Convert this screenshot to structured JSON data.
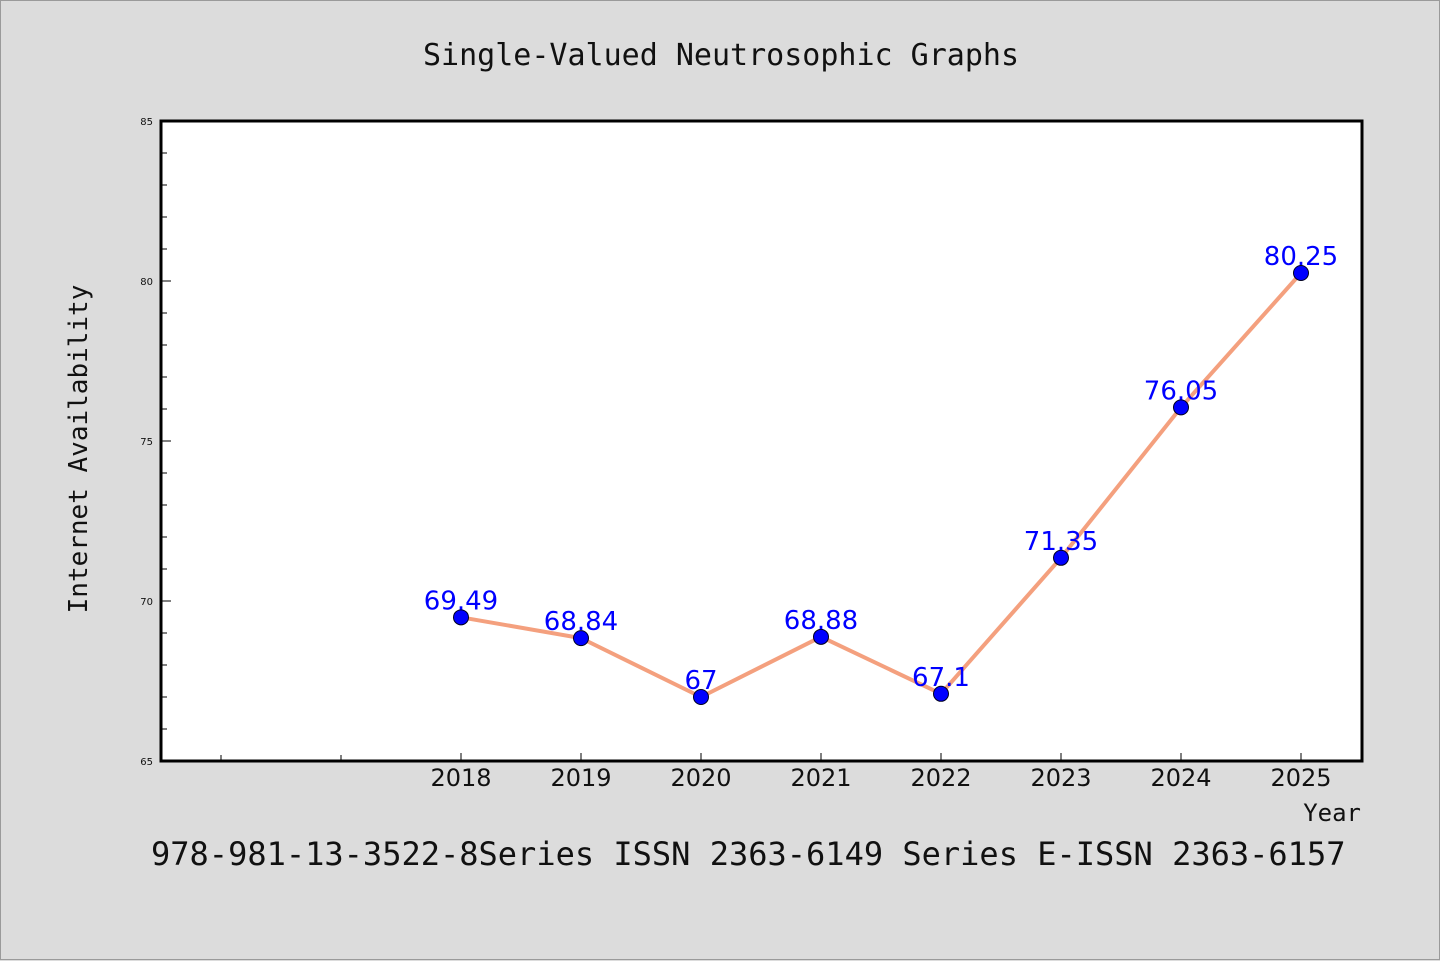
{
  "chart_data": {
    "type": "line",
    "title": "Single-Valued Neutrosophic Graphs",
    "xlabel": "Year",
    "ylabel": "Internet Availability",
    "categories": [
      "2018",
      "2019",
      "2020",
      "2021",
      "2022",
      "2023",
      "2024",
      "2025"
    ],
    "series": [
      {
        "values": [
          69.49,
          68.84,
          67,
          68.88,
          67.1,
          71.35,
          76.05,
          80.25
        ],
        "data_labels": [
          "69.49",
          "68.84",
          "67",
          "68.88",
          "67.1",
          "71.35",
          "76.05",
          "80.25"
        ],
        "line_color": "#f4a07e",
        "marker_color": "#0000ff"
      }
    ],
    "ylim": [
      65,
      85
    ],
    "yticks": [
      "65",
      "70",
      "75",
      "80",
      "85"
    ],
    "grid": false,
    "footer": "978-981-13-3522-8Series ISSN 2363-6149 Series E-ISSN 2363-6157"
  }
}
